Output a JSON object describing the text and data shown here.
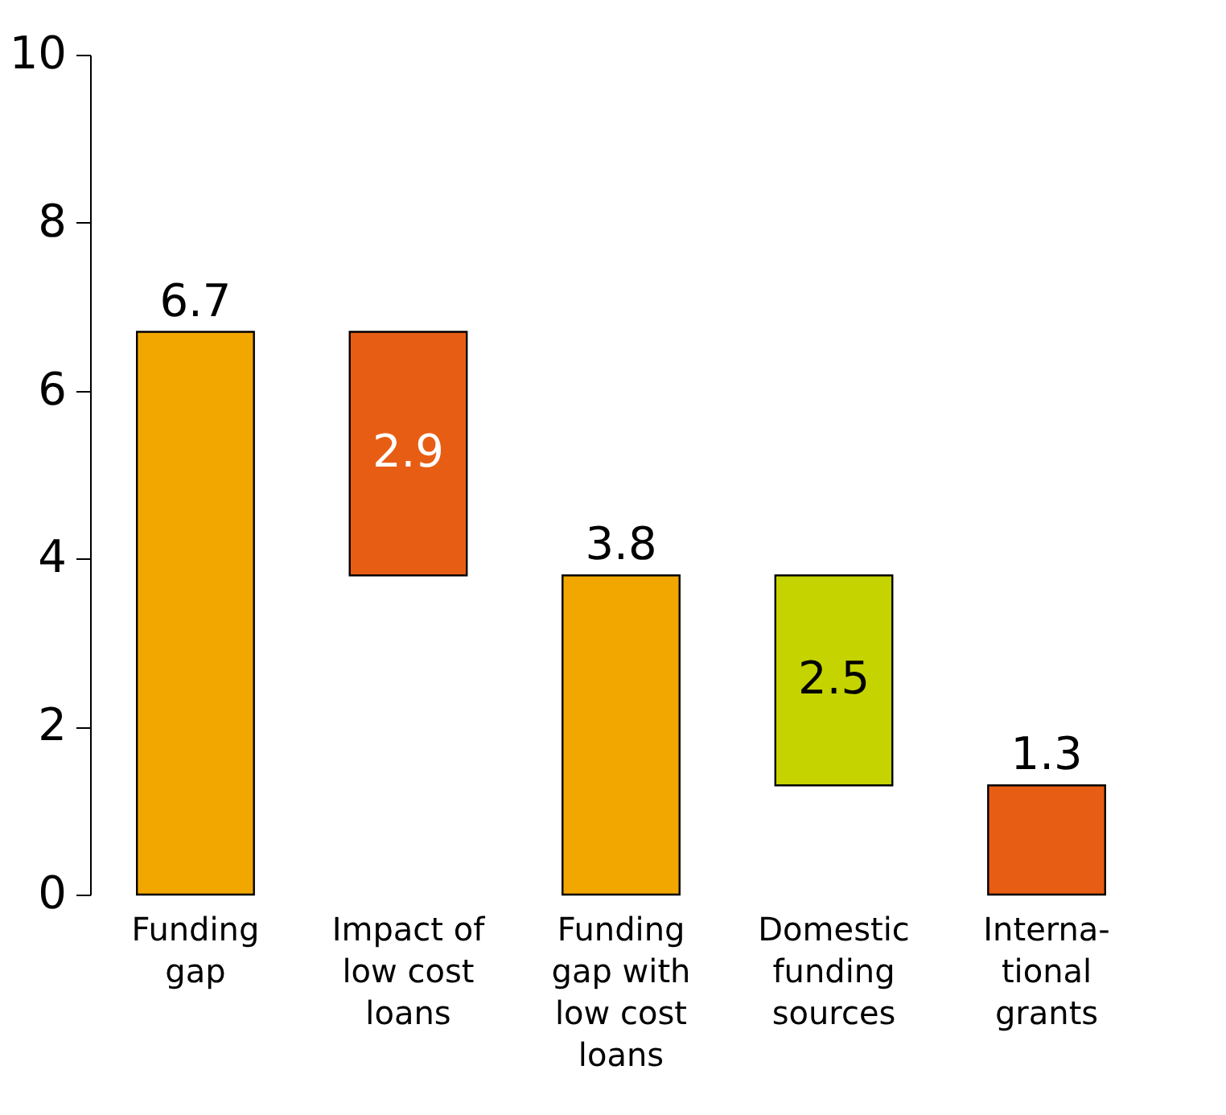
{
  "chart_data": {
    "type": "bar",
    "categories": [
      "Funding gap",
      "Impact of low cost loans",
      "Funding gap with low cost loans",
      "Domestic funding sources",
      "Interna-tional grants"
    ],
    "values": [
      6.7,
      2.9,
      3.8,
      2.5,
      1.3
    ],
    "base": [
      0,
      3.8,
      0,
      1.3,
      0
    ],
    "colors": [
      "#f2a700",
      "#e85d14",
      "#f2a700",
      "#c5d300",
      "#e85d14"
    ],
    "ylim": [
      0,
      10
    ],
    "yticks": [
      0,
      2,
      4,
      6,
      8,
      10
    ],
    "grid": false,
    "data_labels": true
  }
}
